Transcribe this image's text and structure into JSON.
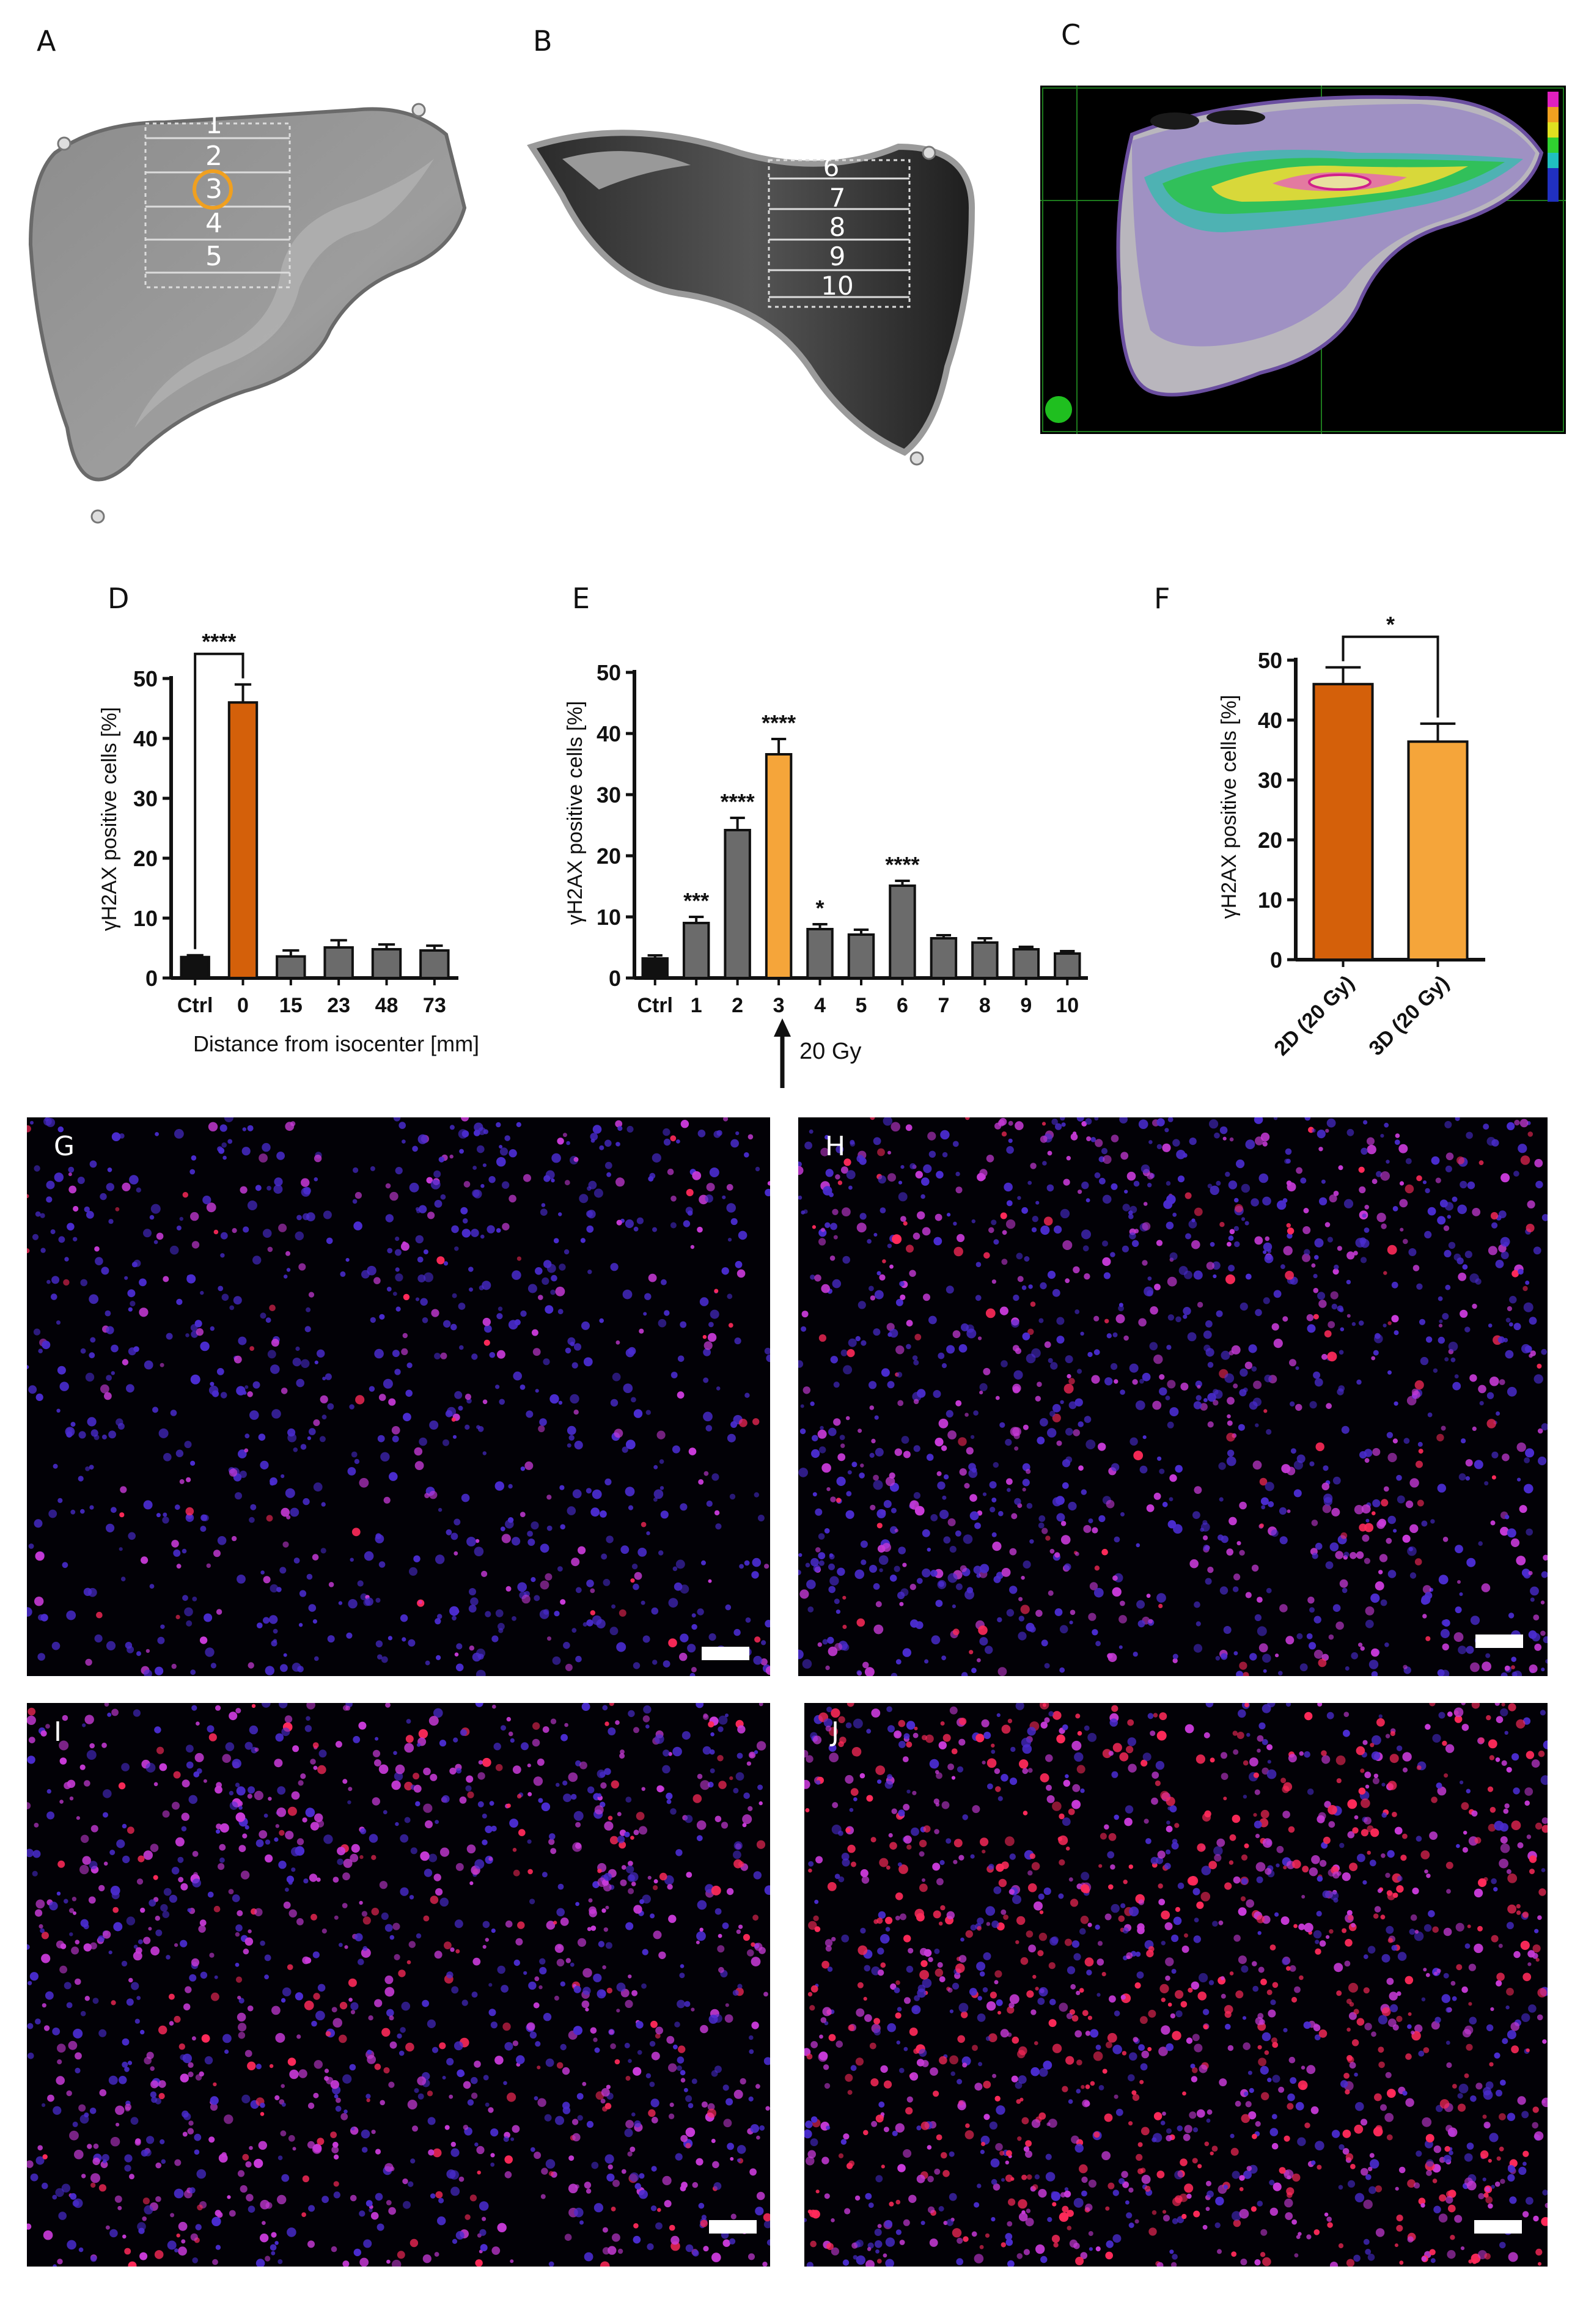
{
  "panels": {
    "A": "A",
    "B": "B",
    "C": "C",
    "D": "D",
    "E": "E",
    "F": "F",
    "G": "G",
    "H": "H",
    "I": "I",
    "J": "J"
  },
  "phantom_a_positions": [
    "1",
    "2",
    "3",
    "4",
    "5"
  ],
  "phantom_b_positions": [
    "6",
    "7",
    "8",
    "9",
    "10"
  ],
  "colors": {
    "ctrl": "#111111",
    "orange_dark": "#d4600a",
    "orange_light": "#f5a53a",
    "gray_bar": "#6b6b6b",
    "marker_circle": "#f0a020"
  },
  "arrow_label": "20 Gy",
  "chart_data": [
    {
      "panel": "D",
      "type": "bar",
      "categories": [
        "Ctrl",
        "0",
        "15",
        "23",
        "48",
        "73"
      ],
      "values": [
        3.5,
        46,
        3.6,
        5.1,
        4.8,
        4.6
      ],
      "errors": [
        0.3,
        3.0,
        1.0,
        1.2,
        0.8,
        0.8
      ],
      "ylabel": "γH2AX positive cells [%]",
      "xlabel": "Distance from isocenter [mm]",
      "ylim": [
        0,
        50
      ],
      "yticks": [
        "0",
        "10",
        "20",
        "30",
        "40",
        "50"
      ],
      "significance": [
        {
          "from": 0,
          "to": 1,
          "label": "****"
        }
      ]
    },
    {
      "panel": "E",
      "type": "bar",
      "categories": [
        "Ctrl",
        "1",
        "2",
        "3",
        "4",
        "5",
        "6",
        "7",
        "8",
        "9",
        "10"
      ],
      "values": [
        3.2,
        9.0,
        24.2,
        36.6,
        8.0,
        7.1,
        15.1,
        6.5,
        5.8,
        4.7,
        4.0
      ],
      "errors": [
        0.5,
        1.0,
        2.0,
        2.5,
        0.8,
        0.8,
        0.8,
        0.5,
        0.7,
        0.4,
        0.4
      ],
      "stars": [
        "",
        "***",
        "****",
        "****",
        "*",
        "",
        "****",
        "",
        "",
        "",
        ""
      ],
      "ylabel": "γH2AX positive cells [%]",
      "ylim": [
        0,
        50
      ],
      "yticks": [
        "0",
        "10",
        "20",
        "30",
        "40",
        "50"
      ]
    },
    {
      "panel": "F",
      "type": "bar",
      "categories": [
        "2D (20 Gy)",
        "3D (20 Gy)"
      ],
      "values": [
        46,
        36.4
      ],
      "errors": [
        2.8,
        3.0
      ],
      "ylabel": "γH2AX positive cells [%]",
      "ylim": [
        0,
        50
      ],
      "yticks": [
        "0",
        "10",
        "20",
        "30",
        "40",
        "50"
      ],
      "significance": [
        {
          "from": 0,
          "to": 1,
          "label": "*"
        }
      ]
    }
  ]
}
